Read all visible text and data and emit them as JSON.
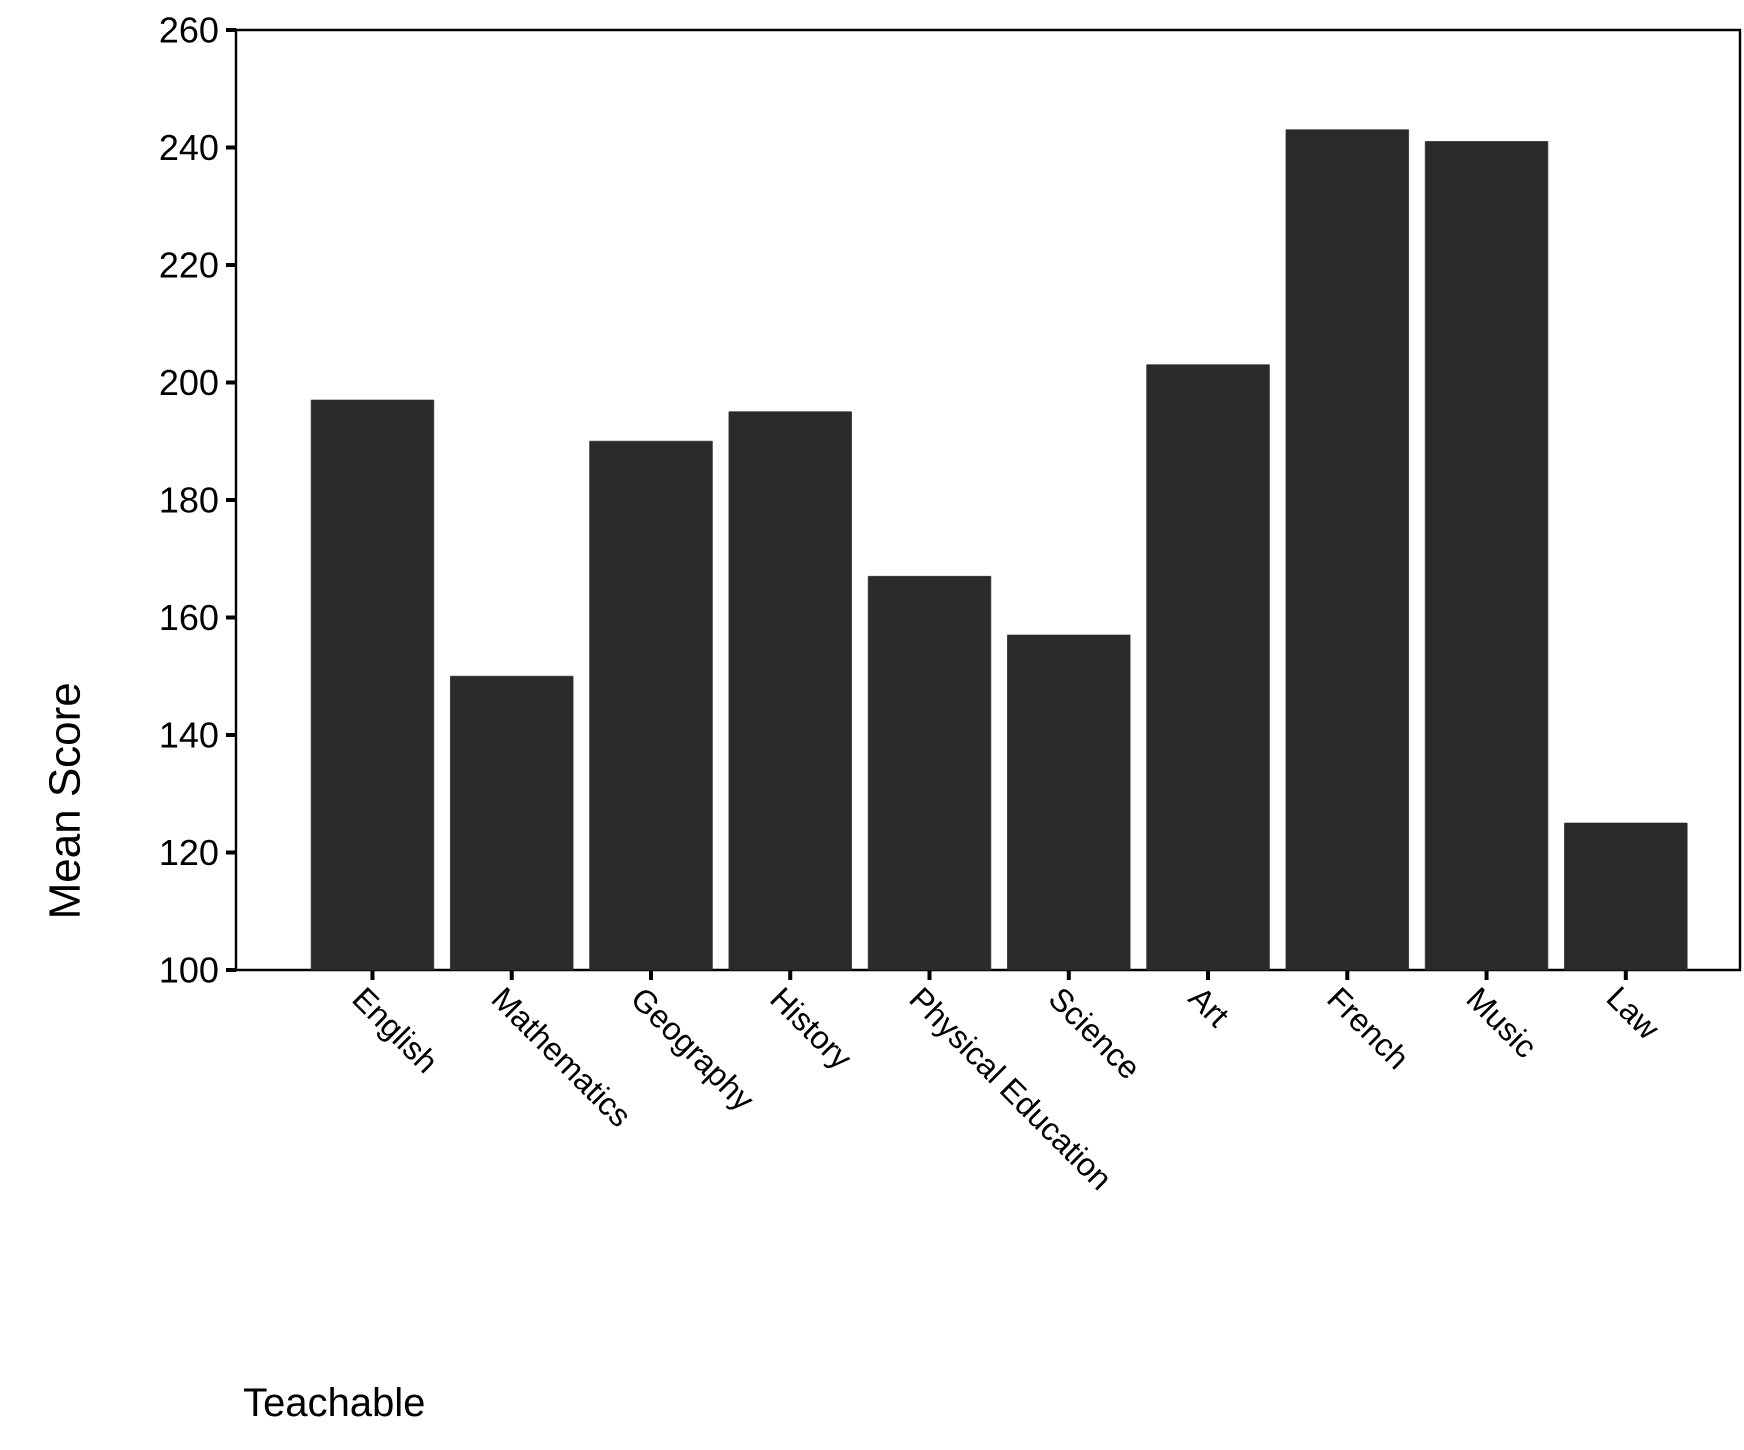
{
  "chart_data": {
    "type": "bar",
    "xlabel": "Teachable",
    "ylabel": "Mean Score",
    "categories": [
      "English",
      "Mathematics",
      "Geography",
      "History",
      "Physical Education",
      "Science",
      "Art",
      "French",
      "Music",
      "Law"
    ],
    "values": [
      197,
      150,
      190,
      195,
      167,
      157,
      203,
      243,
      241,
      125
    ],
    "color": "#2b2b2b",
    "ylim": [
      100,
      260
    ],
    "yticks": [
      100,
      120,
      140,
      160,
      180,
      200,
      220,
      240,
      260
    ]
  }
}
